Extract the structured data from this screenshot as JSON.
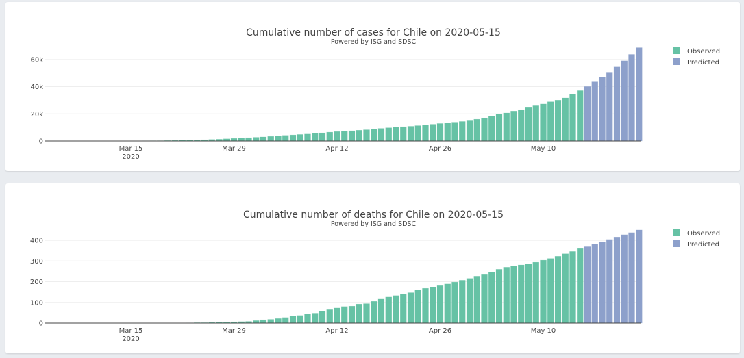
{
  "x_dates_start": "2020-03-04",
  "chart_data": [
    {
      "type": "bar",
      "title": "Cumulative number of cases for Chile on 2020-05-15",
      "subtitle": "Powered by ISG and SDSC",
      "xlabel": "",
      "ylabel": "",
      "x_start": "2020-03-04",
      "x_ticks": [
        "Mar 15",
        "Mar 29",
        "Apr 12",
        "Apr 26",
        "May 10"
      ],
      "x_tick_year": "2020",
      "y_ticks": [
        0,
        20000,
        40000,
        60000
      ],
      "y_tick_labels": [
        "0",
        "20k",
        "40k",
        "60k"
      ],
      "ylim": [
        0,
        72000
      ],
      "legend_position": "right",
      "series": [
        {
          "name": "Observed",
          "color": "#66c2a5",
          "start": "2020-03-04",
          "values": [
            1,
            3,
            4,
            5,
            7,
            10,
            13,
            17,
            23,
            33,
            43,
            61,
            75,
            156,
            201,
            238,
            342,
            434,
            537,
            632,
            746,
            922,
            1142,
            1306,
            1610,
            1909,
            2139,
            2449,
            2738,
            3031,
            3404,
            3737,
            4161,
            4471,
            4815,
            5116,
            5546,
            5972,
            6501,
            6927,
            7213,
            7525,
            7917,
            8273,
            8807,
            9252,
            9730,
            10088,
            10507,
            10832,
            11296,
            11812,
            12306,
            12858,
            13331,
            13813,
            14365,
            14885,
            16023,
            17008,
            18435,
            19663,
            20643,
            22016,
            23048,
            24581,
            25972,
            27219,
            28866,
            30063,
            31721,
            34381,
            37040
          ]
        },
        {
          "name": "Predicted",
          "color": "#8da0cb",
          "start": "2020-05-16",
          "values": [
            40100,
            43500,
            46900,
            50600,
            54500,
            59000,
            63700,
            68700
          ]
        }
      ]
    },
    {
      "type": "bar",
      "title": "Cumulative number of deaths for Chile on 2020-05-15",
      "subtitle": "Powered by ISG and SDSC",
      "xlabel": "",
      "ylabel": "",
      "x_start": "2020-03-04",
      "x_ticks": [
        "Mar 15",
        "Mar 29",
        "Apr 12",
        "Apr 26",
        "May 10"
      ],
      "x_tick_year": "2020",
      "y_ticks": [
        0,
        100,
        200,
        300,
        400
      ],
      "y_tick_labels": [
        "0",
        "100",
        "200",
        "300",
        "400"
      ],
      "ylim": [
        0,
        473
      ],
      "legend_position": "right",
      "series": [
        {
          "name": "Observed",
          "color": "#66c2a5",
          "start": "2020-03-04",
          "values": [
            0,
            0,
            0,
            0,
            0,
            0,
            0,
            0,
            0,
            0,
            0,
            0,
            0,
            0,
            0,
            0,
            0,
            0,
            0,
            1,
            2,
            2,
            3,
            4,
            5,
            6,
            7,
            8,
            12,
            16,
            18,
            22,
            27,
            34,
            37,
            43,
            48,
            57,
            65,
            73,
            80,
            82,
            92,
            94,
            105,
            116,
            126,
            133,
            139,
            147,
            160,
            168,
            174,
            181,
            189,
            198,
            207,
            216,
            227,
            234,
            247,
            260,
            270,
            275,
            281,
            285,
            294,
            304,
            312,
            323,
            335,
            346,
            360
          ]
        },
        {
          "name": "Predicted",
          "color": "#8da0cb",
          "start": "2020-05-16",
          "values": [
            369,
            382,
            393,
            404,
            416,
            427,
            437,
            450
          ]
        }
      ]
    }
  ]
}
